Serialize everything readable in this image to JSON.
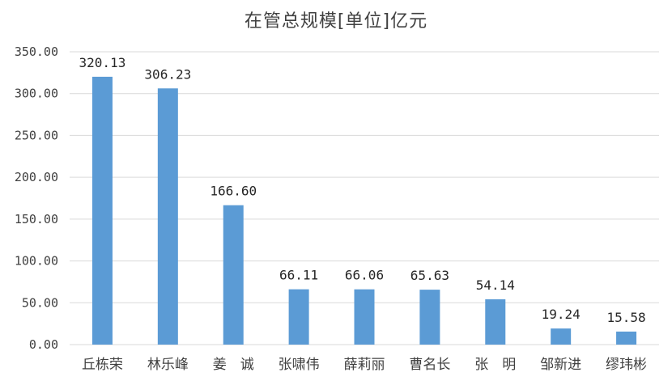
{
  "chart_data": {
    "type": "bar",
    "title": "在管总规模[单位]亿元",
    "categories": [
      "丘栋荣",
      "林乐峰",
      "姜　诚",
      "张啸伟",
      "薛莉丽",
      "曹名长",
      "张　明",
      "邹新进",
      "缪玮彬"
    ],
    "values": [
      320.13,
      306.23,
      166.6,
      66.11,
      66.06,
      65.63,
      54.14,
      19.24,
      15.58
    ],
    "data_labels": [
      "320.13",
      "306.23",
      "166.60",
      "66.11",
      "66.06",
      "65.63",
      "54.14",
      "19.24",
      "15.58"
    ],
    "y_ticks": [
      "0.00",
      "50.00",
      "100.00",
      "150.00",
      "200.00",
      "250.00",
      "300.00",
      "350.00"
    ],
    "ylim": [
      0,
      350
    ],
    "grid": true,
    "legend": "none",
    "bar_color": "#5B9BD5",
    "grid_color": "#D9D9D9"
  }
}
